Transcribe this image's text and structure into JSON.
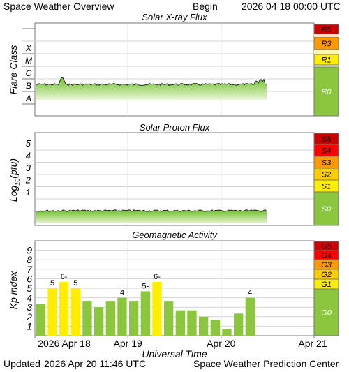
{
  "header": {
    "title": "Space Weather Overview",
    "begin_label": "Begin",
    "begin_time": "2026 04 18 00:00 UTC"
  },
  "footer": {
    "updated_label": "Updated",
    "updated_time": "2026 Apr 20 11:46 UTC",
    "source": "Space Weather Prediction Center"
  },
  "colors": {
    "green": "#8cc63f",
    "yellow": "#ffee00",
    "gold": "#ffcc00",
    "orange": "#ff9900",
    "red": "#ff0000",
    "dark_red": "#cc0000"
  },
  "chart_data": [
    {
      "type": "area",
      "title": "Solar X-ray Flux",
      "ylabel": "Flare Class",
      "y_categories": [
        "A",
        "B",
        "C",
        "M",
        "X"
      ],
      "x_range": [
        "2026 Apr 18",
        "2026 Apr 21"
      ],
      "approx_level": "B",
      "spike": {
        "x": "Apr 18 ~07:00",
        "level": "high B"
      },
      "data_end": "Apr 20 ~11:45",
      "scale": [
        {
          "label": "R5",
          "color": "#cc0000"
        },
        {
          "label": "R3",
          "color": "#ff9900"
        },
        {
          "label": "R1",
          "color": "#ffee00"
        },
        {
          "label": "R0",
          "color": "#8cc63f"
        }
      ]
    },
    {
      "type": "area",
      "title": "Solar Proton Flux",
      "ylabel": "Log10(pfu)",
      "ylabel_base": "Log",
      "ylabel_sub": "10",
      "ylabel_tail": "(pfu)",
      "yticks": [
        1,
        2,
        3,
        4,
        5
      ],
      "approx_level": "below 1",
      "data_end": "Apr 20 ~11:45",
      "scale": [
        {
          "label": "S5",
          "color": "#cc0000"
        },
        {
          "label": "S4",
          "color": "#ff0000"
        },
        {
          "label": "S3",
          "color": "#ff9900"
        },
        {
          "label": "S2",
          "color": "#ffcc00"
        },
        {
          "label": "S1",
          "color": "#ffee00"
        },
        {
          "label": "S0",
          "color": "#8cc63f"
        }
      ]
    },
    {
      "type": "bar",
      "title": "Geomagnetic Activity",
      "ylabel": "Kp index",
      "xlabel": "Universal Time",
      "ylim": [
        0,
        10
      ],
      "yticks": [
        1,
        2,
        3,
        4,
        5,
        6,
        7,
        8,
        9
      ],
      "x_tick_labels": [
        "2026 Apr 18",
        "Apr 19",
        "Apr 20",
        "Apr 21"
      ],
      "bar_interval_hours": 3,
      "values": [
        3.33,
        5,
        5.67,
        5,
        3.67,
        3,
        3.67,
        4,
        3.67,
        4.67,
        5.67,
        3.67,
        2.67,
        2.67,
        2,
        1.67,
        0.67,
        2.33,
        4
      ],
      "labels": [
        "",
        "5",
        "6-",
        "5",
        "",
        "",
        "",
        "4",
        "",
        "5-",
        "6-",
        "",
        "",
        "",
        "",
        "",
        "",
        "",
        "4"
      ],
      "scale": [
        {
          "label": "G5",
          "color": "#cc0000"
        },
        {
          "label": "G4",
          "color": "#ff0000"
        },
        {
          "label": "G3",
          "color": "#ff9900"
        },
        {
          "label": "G2",
          "color": "#ffcc00"
        },
        {
          "label": "G1",
          "color": "#ffee00"
        },
        {
          "label": "G0",
          "color": "#8cc63f"
        }
      ]
    }
  ]
}
